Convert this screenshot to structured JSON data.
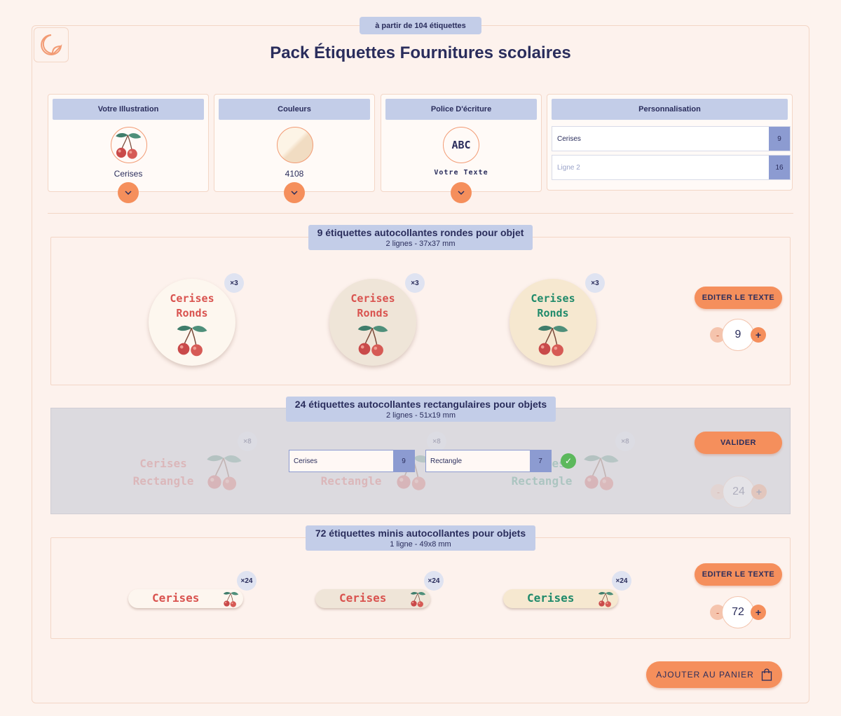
{
  "badge": "à partir de 104 étiquettes",
  "title": "Pack Étiquettes Fournitures scolaires",
  "options": {
    "illustration": {
      "head": "Votre Illustration",
      "value": "Cerises"
    },
    "couleurs": {
      "head": "Couleurs",
      "value": "4108"
    },
    "police": {
      "head": "Police D'écriture",
      "sample": "ABC",
      "value": "Votre Texte"
    },
    "perso": {
      "head": "Personnalisation",
      "line1": {
        "value": "Cerises",
        "count": "9"
      },
      "line2": {
        "placeholder": "Ligne 2",
        "count": "16"
      }
    }
  },
  "sections": {
    "rondes": {
      "title": "9 étiquettes autocollantes rondes pour objet",
      "subtitle": "2 lignes - 37x37 mm",
      "line1": "Cerises",
      "line2": "Ronds",
      "mult": "×3",
      "button": "EDITER LE TEXTE",
      "qty": "9",
      "minus": "-",
      "plus": "+"
    },
    "rect": {
      "title": "24 étiquettes autocollantes rectangulaires pour objets",
      "subtitle": "2 lignes - 51x19 mm",
      "line1": "Cerises",
      "line2": "Rectangle",
      "mult": "×8",
      "field1": {
        "value": "Cerises",
        "count": "9"
      },
      "field2": {
        "value": "Rectangle",
        "count": "7"
      },
      "button": "VALIDER",
      "qty": "24",
      "minus": "-",
      "plus": "+"
    },
    "minis": {
      "title": "72 étiquettes minis autocollantes pour objets",
      "subtitle": "1 ligne - 49x8 mm",
      "line1": "Cerises",
      "mult": "×24",
      "button": "EDITER LE TEXTE",
      "qty": "72",
      "minus": "-",
      "plus": "+"
    }
  },
  "cart": "AJOUTER AU PANIER",
  "colors": {
    "accent": "#f58f5c",
    "header": "#c3cde8",
    "navy": "#2a2d5c",
    "counter": "#8c9bd1",
    "red_text": "#d9534f",
    "green_text": "#1f8a6a"
  }
}
